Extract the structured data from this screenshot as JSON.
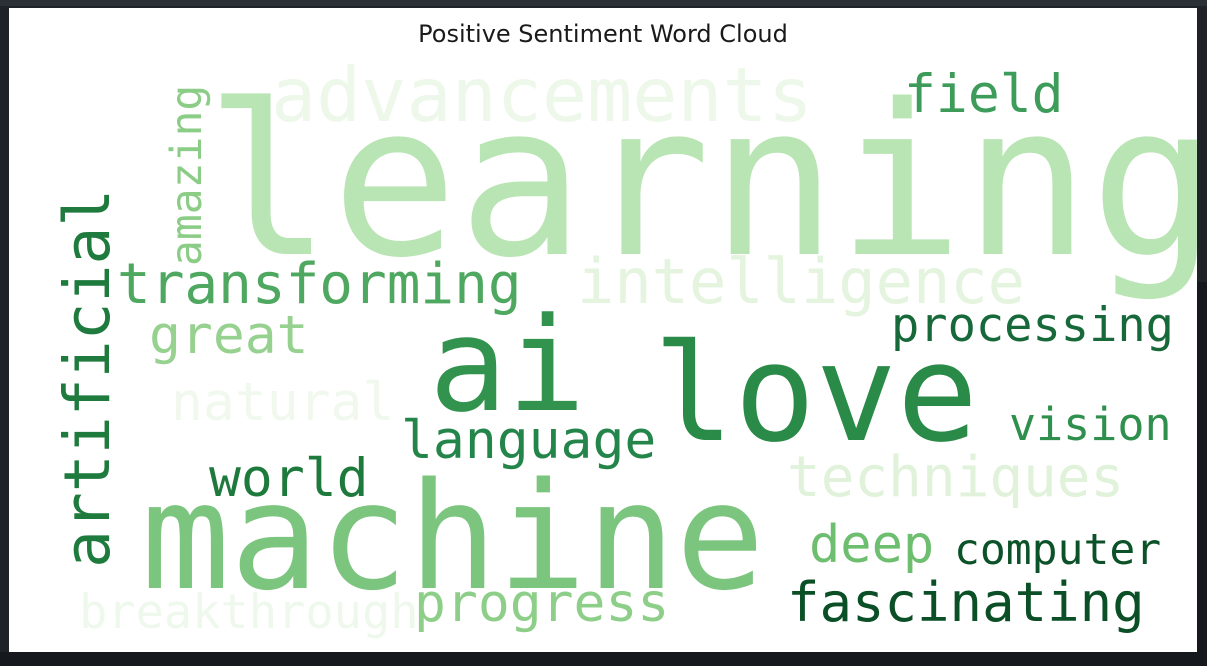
{
  "chart_data": {
    "type": "wordcloud",
    "title": "Positive Sentiment Word Cloud",
    "colormap": "Greens",
    "words": [
      {
        "text": "learning",
        "weight": 1.0,
        "color": "#b9e4b3",
        "orientation": "horizontal"
      },
      {
        "text": "machine",
        "weight": 0.85,
        "color": "#7cc57e",
        "orientation": "horizontal"
      },
      {
        "text": "love",
        "weight": 0.68,
        "color": "#2a8a48",
        "orientation": "horizontal"
      },
      {
        "text": "ai",
        "weight": 0.62,
        "color": "#32934e",
        "orientation": "horizontal"
      },
      {
        "text": "artificial",
        "weight": 0.5,
        "color": "#1f7a3e",
        "orientation": "vertical"
      },
      {
        "text": "advancements",
        "weight": 0.42,
        "color": "#eef8ea",
        "orientation": "horizontal"
      },
      {
        "text": "intelligence",
        "weight": 0.42,
        "color": "#e5f4df",
        "orientation": "horizontal"
      },
      {
        "text": "transforming",
        "weight": 0.38,
        "color": "#4ea85f",
        "orientation": "horizontal"
      },
      {
        "text": "techniques",
        "weight": 0.33,
        "color": "#e1f2da",
        "orientation": "horizontal"
      },
      {
        "text": "fascinating",
        "weight": 0.32,
        "color": "#0b4f26",
        "orientation": "horizontal"
      },
      {
        "text": "progress",
        "weight": 0.31,
        "color": "#8dcf88",
        "orientation": "horizontal"
      },
      {
        "text": "breakthrough",
        "weight": 0.3,
        "color": "#eff8ec",
        "orientation": "horizontal"
      },
      {
        "text": "language",
        "weight": 0.29,
        "color": "#24854a",
        "orientation": "horizontal"
      },
      {
        "text": "world",
        "weight": 0.29,
        "color": "#1e7a3c",
        "orientation": "horizontal"
      },
      {
        "text": "natural",
        "weight": 0.29,
        "color": "#f1f8ee",
        "orientation": "horizontal"
      },
      {
        "text": "deep",
        "weight": 0.28,
        "color": "#6ebe70",
        "orientation": "horizontal"
      },
      {
        "text": "field",
        "weight": 0.27,
        "color": "#3d9c59",
        "orientation": "horizontal"
      },
      {
        "text": "great",
        "weight": 0.27,
        "color": "#96d18f",
        "orientation": "horizontal"
      },
      {
        "text": "processing",
        "weight": 0.25,
        "color": "#17693a",
        "orientation": "horizontal"
      },
      {
        "text": "vision",
        "weight": 0.25,
        "color": "#2f8f4c",
        "orientation": "horizontal"
      },
      {
        "text": "computer",
        "weight": 0.24,
        "color": "#0c5229",
        "orientation": "horizontal"
      },
      {
        "text": "amazing",
        "weight": 0.22,
        "color": "#8bcd86",
        "orientation": "vertical"
      }
    ]
  }
}
